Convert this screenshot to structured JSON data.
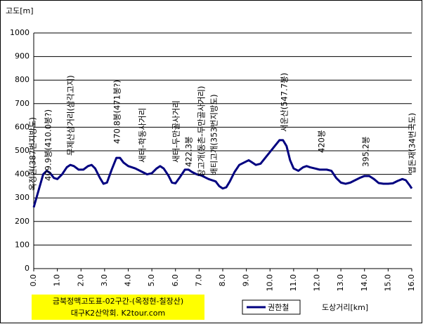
{
  "chart_data": {
    "type": "line",
    "ylabel": "고도[m]",
    "xlabel": "도상거리[km]",
    "title_lines": [
      "금북정맥고도표-02구간-(옥정현-칠장산)",
      "대구K2산악회. K2tour.com"
    ],
    "x": [
      0.0,
      0.2,
      0.4,
      0.55,
      0.7,
      0.85,
      1.0,
      1.2,
      1.4,
      1.55,
      1.7,
      1.9,
      2.1,
      2.3,
      2.45,
      2.6,
      2.8,
      2.95,
      3.1,
      3.3,
      3.5,
      3.65,
      3.8,
      4.0,
      4.3,
      4.6,
      4.8,
      5.0,
      5.2,
      5.35,
      5.5,
      5.7,
      5.85,
      6.0,
      6.2,
      6.4,
      6.55,
      6.7,
      6.9,
      7.1,
      7.4,
      7.7,
      7.85,
      8.0,
      8.15,
      8.3,
      8.5,
      8.7,
      8.9,
      9.1,
      9.25,
      9.4,
      9.6,
      9.8,
      10.0,
      10.2,
      10.4,
      10.55,
      10.7,
      10.85,
      11.0,
      11.2,
      11.4,
      11.55,
      11.7,
      11.9,
      12.1,
      12.4,
      12.6,
      12.8,
      13.0,
      13.2,
      13.4,
      13.6,
      13.8,
      14.0,
      14.2,
      14.4,
      14.6,
      14.8,
      15.0,
      15.2,
      15.4,
      15.6,
      15.75,
      15.9,
      16.0
    ],
    "series": [
      {
        "name": "권한철",
        "color": "#000080",
        "values": [
          260,
          330,
          400,
          415,
          405,
          385,
          380,
          400,
          430,
          440,
          435,
          420,
          420,
          435,
          440,
          425,
          385,
          360,
          365,
          420,
          470,
          470,
          450,
          435,
          425,
          410,
          400,
          405,
          425,
          435,
          425,
          395,
          365,
          362,
          390,
          420,
          420,
          410,
          400,
          395,
          380,
          370,
          350,
          340,
          345,
          370,
          410,
          440,
          450,
          460,
          450,
          440,
          445,
          470,
          495,
          520,
          545,
          545,
          520,
          460,
          425,
          415,
          430,
          435,
          430,
          425,
          420,
          420,
          415,
          385,
          365,
          360,
          365,
          375,
          385,
          393,
          393,
          380,
          363,
          360,
          360,
          362,
          372,
          380,
          375,
          355,
          340
        ]
      }
    ],
    "annotations": [
      "옥정현(387번지방도)",
      "409.9봉(410.0봉?)",
      "무제산삼거리(삼각고지)",
      "470.8봉(471봉?)",
      "새터-학동사거리",
      "새터-두만골사거리",
      "422.3봉",
      "장고개(동촌-두만골사거리)",
      "배티고개(353번지방도)",
      "서운산(547.7봉)",
      "420봉",
      "395.2봉",
      "엽돈재(34번국도)"
    ],
    "xlim": [
      0,
      16
    ],
    "ylim": [
      0,
      1000
    ],
    "xticks": [
      {
        "value": 0,
        "label": "0.0"
      },
      {
        "value": 1,
        "label": "1.0"
      },
      {
        "value": 2,
        "label": "2.0"
      },
      {
        "value": 3,
        "label": "3.0"
      },
      {
        "value": 4,
        "label": "4.0"
      },
      {
        "value": 5,
        "label": "5.0"
      },
      {
        "value": 6,
        "label": "6.0"
      },
      {
        "value": 7,
        "label": "7.0"
      },
      {
        "value": 8,
        "label": "8.0"
      },
      {
        "value": 9,
        "label": "9.0"
      },
      {
        "value": 10,
        "label": "10.0"
      },
      {
        "value": 11,
        "label": "11.0"
      },
      {
        "value": 12,
        "label": "12.0"
      },
      {
        "value": 13,
        "label": "13.0"
      },
      {
        "value": 14,
        "label": "14.0"
      },
      {
        "value": 15,
        "label": "15.0"
      },
      {
        "value": 16,
        "label": "16.0"
      }
    ],
    "yticks": [
      0,
      100,
      200,
      300,
      400,
      500,
      600,
      700,
      800,
      900,
      1000
    ],
    "grid": true
  }
}
